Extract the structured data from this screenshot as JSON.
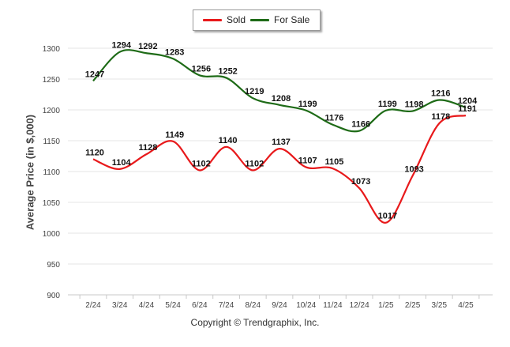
{
  "chart_data": {
    "type": "line",
    "categories": [
      "2/24",
      "3/24",
      "4/24",
      "5/24",
      "6/24",
      "7/24",
      "8/24",
      "9/24",
      "10/24",
      "11/24",
      "12/24",
      "1/25",
      "2/25",
      "3/25",
      "4/25"
    ],
    "series": [
      {
        "name": "Sold",
        "color": "#e8191b",
        "values": [
          1120,
          1104,
          1128,
          1149,
          1102,
          1140,
          1102,
          1137,
          1107,
          1105,
          1073,
          1017,
          1093,
          1178,
          1191
        ]
      },
      {
        "name": "For Sale",
        "color": "#1e6b17",
        "values": [
          1247,
          1294,
          1292,
          1283,
          1256,
          1252,
          1219,
          1208,
          1199,
          1176,
          1166,
          1199,
          1198,
          1216,
          1204
        ]
      }
    ],
    "ylabel": "Average Price (in $,000)",
    "xlabel": "",
    "ylim": [
      900,
      1300
    ],
    "yticks": [
      900,
      950,
      1000,
      1050,
      1100,
      1150,
      1200,
      1250,
      1300
    ],
    "grid": true,
    "legend_position": "top-center"
  },
  "footer": {
    "copyright": "Copyright © Trendgraphix, Inc."
  }
}
